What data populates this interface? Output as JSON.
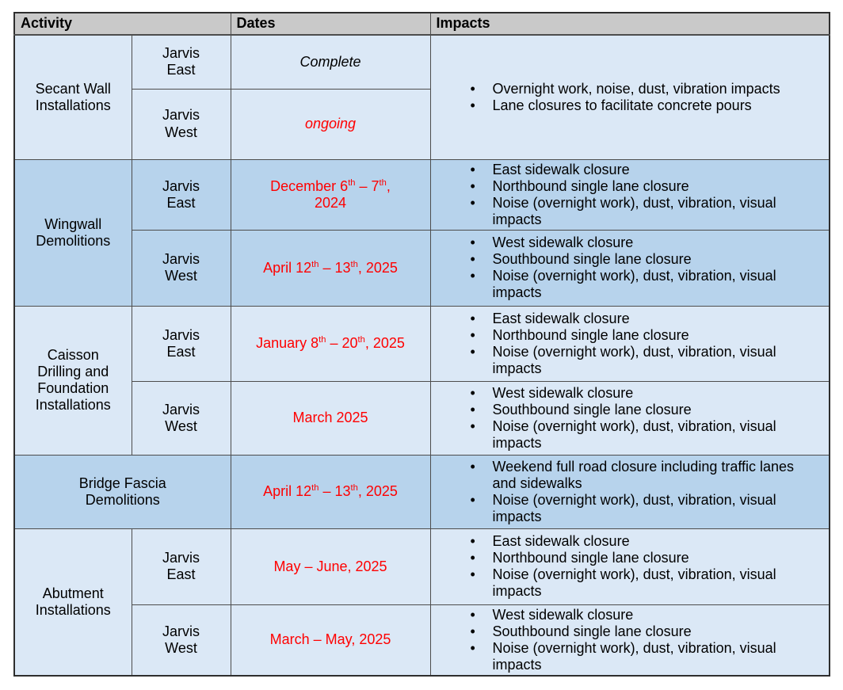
{
  "colors": {
    "row_light": "#dbe8f6",
    "row_dark": "#b7d3ec",
    "header_bg": "#c9c9c9",
    "date_red": "#ff0000",
    "text": "#000000",
    "border": "#4d4d4d"
  },
  "header": {
    "activity": "Activity",
    "dates": "Dates",
    "impacts": "Impacts"
  },
  "groups": [
    {
      "activity": "Secant Wall\nInstallations",
      "shade": "light",
      "impacts_shared": [
        "Overnight work, noise, dust, vibration impacts",
        "Lane closures to facilitate concrete pours"
      ],
      "rows": [
        {
          "segment": "Jarvis\nEast",
          "date_parts": [
            {
              "t": "Complete"
            }
          ],
          "date_style": "black-italic"
        },
        {
          "segment": "Jarvis\nWest",
          "date_parts": [
            {
              "t": "ongoing"
            }
          ],
          "date_style": "red-italic"
        }
      ]
    },
    {
      "activity": "Wingwall\nDemolitions",
      "shade": "dark",
      "rows": [
        {
          "segment": "Jarvis\nEast",
          "date_parts": [
            {
              "t": "December 6"
            },
            {
              "t": "th",
              "sup": true
            },
            {
              "t": " – 7"
            },
            {
              "t": "th",
              "sup": true
            },
            {
              "t": ",\n2024"
            }
          ],
          "date_style": "red",
          "impacts": [
            "East sidewalk closure",
            "Northbound single lane closure",
            "Noise (overnight work), dust, vibration, visual impacts"
          ]
        },
        {
          "segment": "Jarvis\nWest",
          "date_parts": [
            {
              "t": "April 12"
            },
            {
              "t": "th",
              "sup": true
            },
            {
              "t": " – 13"
            },
            {
              "t": "th",
              "sup": true
            },
            {
              "t": ", 2025"
            }
          ],
          "date_style": "red",
          "impacts": [
            "West sidewalk closure",
            "Southbound single lane closure",
            "Noise (overnight work), dust, vibration, visual impacts"
          ]
        }
      ]
    },
    {
      "activity": "Caisson\nDrilling and\nFoundation\nInstallations",
      "shade": "light",
      "rows": [
        {
          "segment": "Jarvis\nEast",
          "date_parts": [
            {
              "t": "January 8"
            },
            {
              "t": "th",
              "sup": true
            },
            {
              "t": " – 20"
            },
            {
              "t": "th",
              "sup": true
            },
            {
              "t": ", 2025"
            }
          ],
          "date_style": "red",
          "impacts": [
            "East sidewalk closure",
            "Northbound single lane closure",
            "Noise (overnight work), dust, vibration, visual impacts"
          ]
        },
        {
          "segment": "Jarvis\nWest",
          "date_parts": [
            {
              "t": "March 2025"
            }
          ],
          "date_style": "red",
          "impacts": [
            "West sidewalk closure",
            "Southbound single lane closure",
            "Noise (overnight work), dust, vibration, visual impacts"
          ]
        }
      ]
    },
    {
      "activity": "Bridge Fascia\nDemolitions",
      "shade": "dark",
      "rows": [
        {
          "date_parts": [
            {
              "t": "April 12"
            },
            {
              "t": "th",
              "sup": true
            },
            {
              "t": " – 13"
            },
            {
              "t": "th",
              "sup": true
            },
            {
              "t": ", 2025"
            }
          ],
          "date_style": "red",
          "impacts": [
            "Weekend full road closure including traffic lanes and sidewalks",
            "Noise (overnight work), dust, vibration, visual impacts"
          ]
        }
      ]
    },
    {
      "activity": "Abutment\nInstallations",
      "shade": "light",
      "rows": [
        {
          "segment": "Jarvis\nEast",
          "date_parts": [
            {
              "t": "May – June, 2025"
            }
          ],
          "date_style": "red",
          "impacts": [
            "East sidewalk closure",
            "Northbound single lane closure",
            "Noise (overnight work), dust, vibration, visual impacts"
          ]
        },
        {
          "segment": "Jarvis\nWest",
          "date_parts": [
            {
              "t": "March – May, 2025"
            }
          ],
          "date_style": "red",
          "impacts": [
            "West sidewalk closure",
            "Southbound single lane closure",
            "Noise (overnight work), dust, vibration, visual impacts"
          ]
        }
      ]
    }
  ]
}
